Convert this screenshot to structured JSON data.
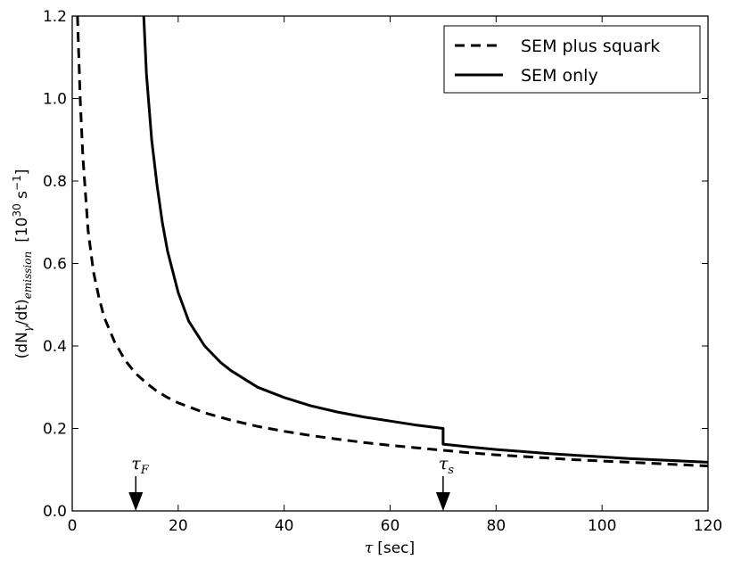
{
  "chart_data": {
    "type": "line",
    "xlabel": {
      "symbol": "τ",
      "unit": "[sec]"
    },
    "ylabel": {
      "prefix": "(dN",
      "gamma_sub": "γ",
      "mid": "/dt)",
      "emission_sub": "emission",
      "units_open": "[10",
      "units_exp": "30",
      "units_mid": " s",
      "units_exp2": "−1",
      "units_close": "]"
    },
    "xlim": [
      0,
      120
    ],
    "ylim": [
      0.0,
      1.2
    ],
    "xticks": [
      0,
      20,
      40,
      60,
      80,
      100,
      120
    ],
    "yticks": [
      0.0,
      0.2,
      0.4,
      0.6,
      0.8,
      1.0,
      1.2
    ],
    "xtick_labels": [
      "0",
      "20",
      "40",
      "60",
      "80",
      "100",
      "120"
    ],
    "ytick_labels": [
      "0.0",
      "0.2",
      "0.4",
      "0.6",
      "0.8",
      "1.0",
      "1.2"
    ],
    "grid": false,
    "legend_position": "top-right",
    "series": [
      {
        "name": "SEM plus squark",
        "style": "dashed",
        "color": "#000000",
        "x": [
          1,
          1.5,
          2,
          3,
          4,
          5,
          6,
          8,
          10,
          12,
          14,
          16,
          18,
          20,
          25,
          30,
          35,
          40,
          45,
          50,
          55,
          60,
          65,
          70,
          75,
          80,
          85,
          90,
          95,
          100,
          105,
          110,
          115,
          120
        ],
        "y": [
          1.2,
          1.0,
          0.86,
          0.68,
          0.58,
          0.52,
          0.47,
          0.41,
          0.365,
          0.333,
          0.31,
          0.29,
          0.275,
          0.262,
          0.238,
          0.22,
          0.205,
          0.193,
          0.183,
          0.174,
          0.166,
          0.159,
          0.153,
          0.147,
          0.141,
          0.136,
          0.132,
          0.128,
          0.124,
          0.121,
          0.118,
          0.115,
          0.112,
          0.109
        ]
      },
      {
        "name": "SEM only",
        "style": "solid",
        "color": "#000000",
        "segments": [
          {
            "x": [
              13.5,
              14,
              15,
              16,
              17,
              18,
              20,
              22,
              25,
              28,
              30,
              35,
              40,
              45,
              50,
              55,
              60,
              65,
              70
            ],
            "y": [
              1.2,
              1.06,
              0.9,
              0.79,
              0.7,
              0.63,
              0.53,
              0.46,
              0.4,
              0.36,
              0.34,
              0.3,
              0.275,
              0.255,
              0.24,
              0.228,
              0.218,
              0.208,
              0.2
            ]
          },
          {
            "x": [
              70,
              75,
              80,
              85,
              90,
              95,
              100,
              105,
              110,
              115,
              120
            ],
            "y": [
              0.162,
              0.155,
              0.149,
              0.144,
              0.139,
              0.135,
              0.131,
              0.127,
              0.124,
              0.121,
              0.118
            ]
          }
        ]
      }
    ],
    "annotations": [
      {
        "label": "τ",
        "sub": "F",
        "x": 12,
        "type": "arrow-down-to-axis"
      },
      {
        "label": "τ",
        "sub": "s",
        "x": 70,
        "type": "arrow-down-to-axis"
      }
    ]
  }
}
